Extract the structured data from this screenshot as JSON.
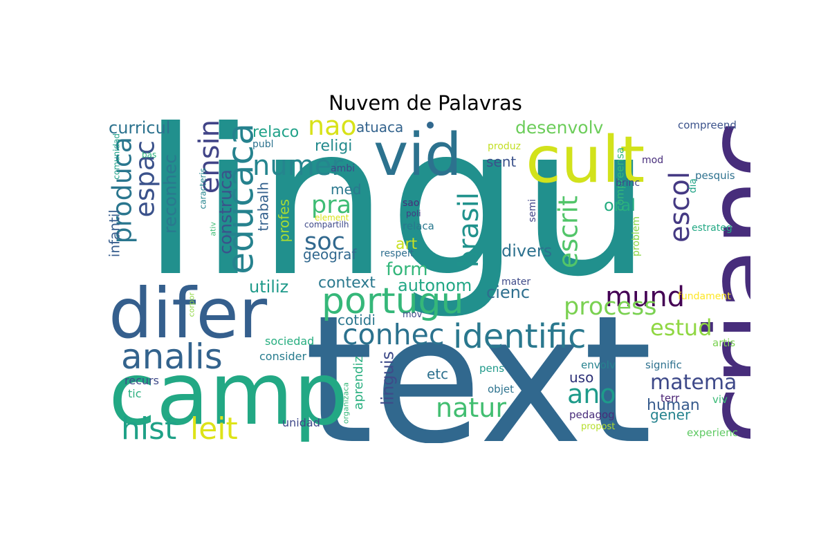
{
  "title": "Nuvem de Palavras",
  "colors": {
    "background": "#ffffff",
    "title": "#000000"
  },
  "words": [
    {
      "text": "lingu",
      "color": "#21908d"
    },
    {
      "text": "text",
      "color": "#31688e"
    },
    {
      "text": "crianc",
      "color": "#472d7b"
    },
    {
      "text": "camp",
      "color": "#22a884"
    },
    {
      "text": "difer",
      "color": "#355f8d"
    },
    {
      "text": "cult",
      "color": "#d2e21b"
    },
    {
      "text": "vid",
      "color": "#2c728e"
    },
    {
      "text": "identific",
      "color": "#2a788e"
    },
    {
      "text": "portugu",
      "color": "#35b779"
    },
    {
      "text": "analis",
      "color": "#33638d"
    },
    {
      "text": "educaca",
      "color": "#26828e"
    },
    {
      "text": "conhec",
      "color": "#2c728e"
    },
    {
      "text": "hist",
      "color": "#1fa187"
    },
    {
      "text": "leit",
      "color": "#dde318"
    },
    {
      "text": "produca",
      "color": "#2a768e"
    },
    {
      "text": "espac",
      "color": "#3b528b"
    },
    {
      "text": "ensin",
      "color": "#414487"
    },
    {
      "text": "escrit",
      "color": "#52c569"
    },
    {
      "text": "escol",
      "color": "#443983"
    },
    {
      "text": "mund",
      "color": "#440154"
    },
    {
      "text": "numer",
      "color": "#25858e"
    },
    {
      "text": "nao",
      "color": "#d8e219"
    },
    {
      "text": "natur",
      "color": "#42be71"
    },
    {
      "text": "ano",
      "color": "#1e9b8a"
    },
    {
      "text": "brasil",
      "color": "#20928c"
    },
    {
      "text": "process",
      "color": "#7ad151"
    },
    {
      "text": "soc",
      "color": "#31688e"
    },
    {
      "text": "pra",
      "color": "#3dbc74"
    },
    {
      "text": "matema",
      "color": "#3e4989"
    },
    {
      "text": "estud",
      "color": "#90d743"
    },
    {
      "text": "desenvolv",
      "color": "#6ccd5a"
    },
    {
      "text": "reconhec",
      "color": "#2a788e"
    },
    {
      "text": "construca",
      "color": "#3b528b"
    },
    {
      "text": "curricul",
      "color": "#2c728e"
    },
    {
      "text": "linguis",
      "color": "#3e4a89"
    },
    {
      "text": "utiliz",
      "color": "#1f9a8a"
    },
    {
      "text": "autonom",
      "color": "#22a785"
    },
    {
      "text": "context",
      "color": "#2a788e"
    },
    {
      "text": "form",
      "color": "#33b67a"
    },
    {
      "text": "divers",
      "color": "#2d718e"
    },
    {
      "text": "cienc",
      "color": "#2e6e8e"
    },
    {
      "text": "oral",
      "color": "#26ad81"
    },
    {
      "text": "human",
      "color": "#375b8d"
    },
    {
      "text": "relaco",
      "color": "#1fa188"
    },
    {
      "text": "atuaca",
      "color": "#33638d"
    },
    {
      "text": "religi",
      "color": "#238a8d"
    },
    {
      "text": "med",
      "color": "#2a788e"
    },
    {
      "text": "sent",
      "color": "#3b528b"
    },
    {
      "text": "cotidi",
      "color": "#2a768e"
    },
    {
      "text": "trabalh",
      "color": "#34618d"
    },
    {
      "text": "profes",
      "color": "#a8db34"
    },
    {
      "text": "infantil",
      "color": "#365d8d"
    },
    {
      "text": "art",
      "color": "#c8e020"
    },
    {
      "text": "uso",
      "color": "#2b2f76"
    },
    {
      "text": "etc",
      "color": "#2d708e"
    },
    {
      "text": "aprendiz",
      "color": "#29af7f"
    },
    {
      "text": "geograf",
      "color": "#31688e"
    },
    {
      "text": "gener",
      "color": "#25838e"
    },
    {
      "text": "sociedad",
      "color": "#28ae80"
    },
    {
      "text": "consider",
      "color": "#287c8e"
    },
    {
      "text": "recurs",
      "color": "#3e4989"
    },
    {
      "text": "tic",
      "color": "#29af7f"
    },
    {
      "text": "unidad",
      "color": "#3f4889"
    },
    {
      "text": "pedagog",
      "color": "#472c7a"
    },
    {
      "text": "experienc",
      "color": "#5ec962"
    },
    {
      "text": "envolv",
      "color": "#26828e"
    },
    {
      "text": "signific",
      "color": "#2d708e"
    },
    {
      "text": "terr",
      "color": "#482173"
    },
    {
      "text": "viv",
      "color": "#3aba76"
    },
    {
      "text": "artis",
      "color": "#7ad151"
    },
    {
      "text": "pens",
      "color": "#1f998a"
    },
    {
      "text": "objet",
      "color": "#2c728e"
    },
    {
      "text": "propost",
      "color": "#b5de2b"
    },
    {
      "text": "fundament",
      "color": "#fde725"
    },
    {
      "text": "mater",
      "color": "#3e4a89"
    },
    {
      "text": "problem",
      "color": "#8bd646"
    },
    {
      "text": "semi",
      "color": "#414487"
    },
    {
      "text": "compreensa",
      "color": "#35b779"
    },
    {
      "text": "brinc",
      "color": "#3f4788"
    },
    {
      "text": "dia",
      "color": "#20a386"
    },
    {
      "text": "pesquis",
      "color": "#2d718e"
    },
    {
      "text": "estrateg",
      "color": "#22a884"
    },
    {
      "text": "mod",
      "color": "#472d7b"
    },
    {
      "text": "compreend",
      "color": "#3b528b"
    },
    {
      "text": "produz",
      "color": "#c2df23"
    },
    {
      "text": "publ",
      "color": "#2c728e"
    },
    {
      "text": "ambi",
      "color": "#3f4889"
    },
    {
      "text": "comunidad",
      "color": "#1fa188"
    },
    {
      "text": "bas",
      "color": "#2db27d"
    },
    {
      "text": "caracteris",
      "color": "#25848e"
    },
    {
      "text": "ativ",
      "color": "#3dbc74"
    },
    {
      "text": "compartilh",
      "color": "#3e4989"
    },
    {
      "text": "element",
      "color": "#d8e219"
    },
    {
      "text": "sao",
      "color": "#472d7b"
    },
    {
      "text": "poli",
      "color": "#443983"
    },
    {
      "text": "relaca",
      "color": "#2a788e"
    },
    {
      "text": "respeit",
      "color": "#2e6e8e"
    },
    {
      "text": "mov",
      "color": "#3e4989"
    },
    {
      "text": "organizaca",
      "color": "#35b779"
    },
    {
      "text": "corpor",
      "color": "#90d743"
    }
  ]
}
